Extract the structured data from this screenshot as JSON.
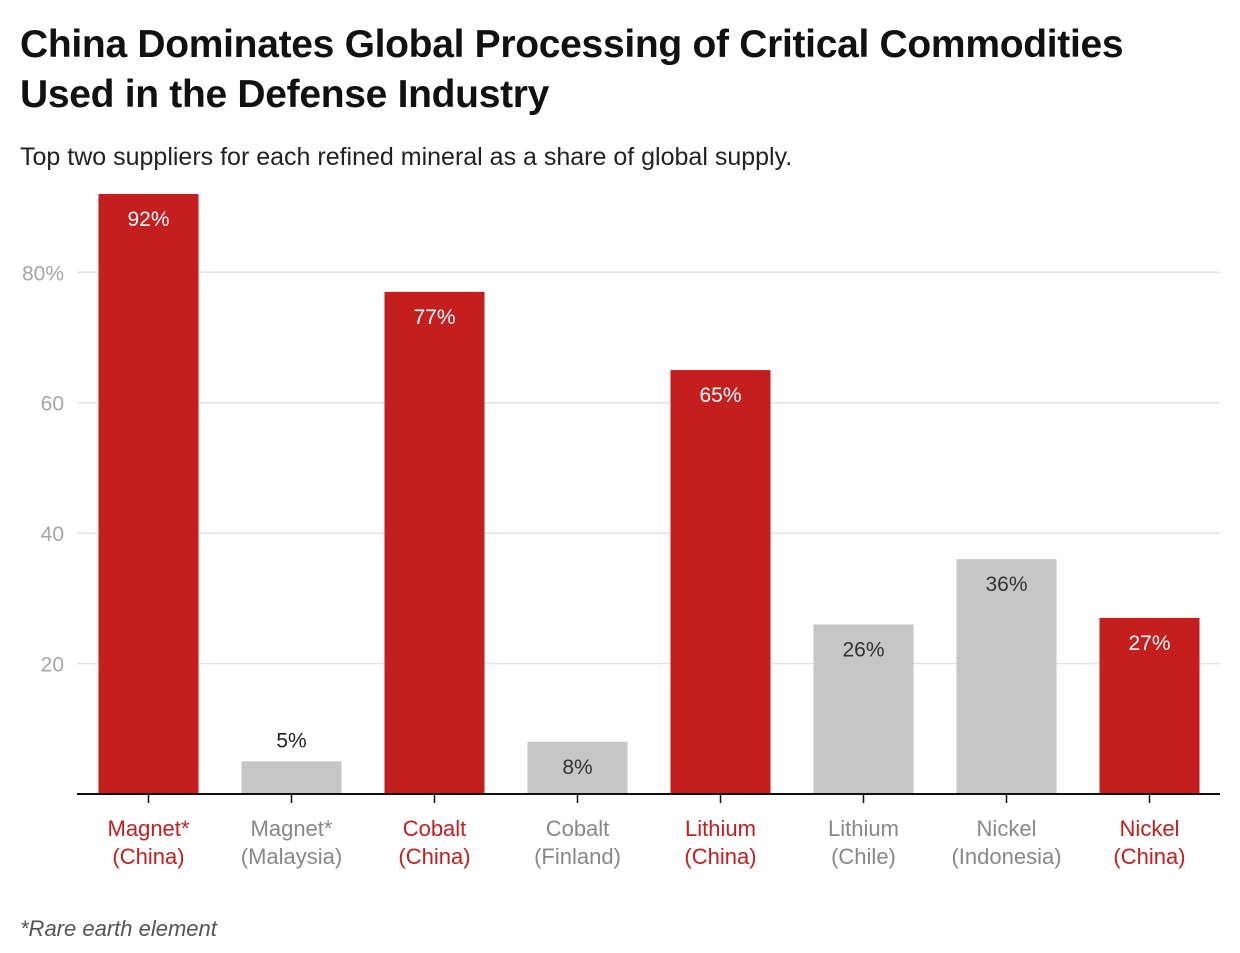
{
  "title": "China Dominates Global Processing of Critical Commodities Used in the Defense Industry",
  "subtitle": "Top two suppliers for each refined mineral as a share of global supply.",
  "footnote": "*Rare earth element",
  "colors": {
    "china": "#c41e1e",
    "other": "#c6c6c6",
    "china_label": "#c41e1e",
    "other_label": "#888888",
    "grid": "#e3e3e3",
    "axis": "#111111",
    "tick_label": "#a6a6a6"
  },
  "chart_data": {
    "type": "bar",
    "title": "China Dominates Global Processing of Critical Commodities Used in the Defense Industry",
    "subtitle": "Top two suppliers for each refined mineral as a share of global supply.",
    "categories": [
      [
        "Magnet*",
        "(China)"
      ],
      [
        "Magnet*",
        "(Malaysia)"
      ],
      [
        "Cobalt",
        "(China)"
      ],
      [
        "Cobalt",
        "(Finland)"
      ],
      [
        "Lithium",
        "(China)"
      ],
      [
        "Lithium",
        "(Chile)"
      ],
      [
        "Nickel",
        "(Indonesia)"
      ],
      [
        "Nickel",
        "(China)"
      ]
    ],
    "values": [
      92,
      5,
      77,
      8,
      65,
      26,
      36,
      27
    ],
    "value_labels": [
      "92%",
      "5%",
      "77%",
      "8%",
      "65%",
      "26%",
      "36%",
      "27%"
    ],
    "is_china": [
      true,
      false,
      true,
      false,
      true,
      false,
      false,
      true
    ],
    "ylim": [
      0,
      92
    ],
    "yticks": [
      20,
      40,
      60,
      80
    ],
    "ytick_labels": [
      "20",
      "40",
      "60",
      "80%"
    ],
    "grid": true,
    "xlabel": "",
    "ylabel": ""
  }
}
